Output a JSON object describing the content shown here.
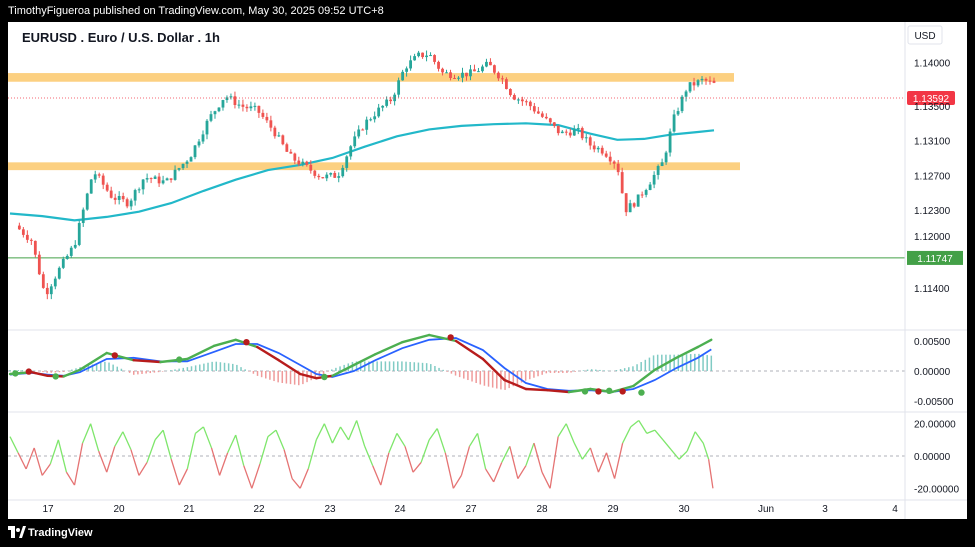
{
  "header": {
    "publisher_line": "TimothyFigueroa published on TradingView.com, May 30, 2025 09:52 UTC+8"
  },
  "chart_title": "EURUSD . Euro / U.S. Dollar . 1h",
  "currency_badge": "USD",
  "footer": {
    "brand": "TradingView",
    "logo_icon": "tradingview-logo-icon"
  },
  "colors": {
    "up": "#26a69a",
    "down": "#ef5350",
    "ma": "#22b8c9",
    "zone": "#fbc86b",
    "macd_fast": "#4caf50",
    "macd_slow": "#2962ff",
    "macd_dot_bull": "#4caf50",
    "macd_dot_bear": "#b71c1c",
    "osc_up": "#7ee66b",
    "osc_down": "#e57373",
    "hline": "#43a047",
    "price_label": "#f23645"
  },
  "chart_data": [
    {
      "type": "candlestick",
      "x_ticks": [
        "17",
        "20",
        "21",
        "22",
        "23",
        "24",
        "27",
        "28",
        "29",
        "30",
        "Jun",
        "3",
        "4"
      ],
      "y_ticks": [
        "1.14000",
        "1.13500",
        "1.13100",
        "1.12700",
        "1.12300",
        "1.12000",
        "1.11400"
      ],
      "ylim": [
        1.1095,
        1.144
      ],
      "current_price": "1.13592",
      "horizontal_line": {
        "label": "1.11747",
        "value": 1.11747
      },
      "zones": [
        {
          "from": 1.1378,
          "to": 1.1388
        },
        {
          "from": 1.1276,
          "to": 1.1285
        }
      ],
      "close_path": [
        [
          16.8,
          1.1212
        ],
        [
          17.1,
          1.1195
        ],
        [
          17.35,
          1.1132
        ],
        [
          17.6,
          1.116
        ],
        [
          17.9,
          1.119
        ],
        [
          18.25,
          1.1275
        ],
        [
          18.6,
          1.1245
        ],
        [
          18.9,
          1.1238
        ],
        [
          19.2,
          1.1268
        ],
        [
          19.6,
          1.1262
        ],
        [
          20.05,
          1.1292
        ],
        [
          20.4,
          1.1335
        ],
        [
          20.7,
          1.1362
        ],
        [
          21.0,
          1.135
        ],
        [
          21.3,
          1.1345
        ],
        [
          21.6,
          1.1322
        ],
        [
          21.9,
          1.1292
        ],
        [
          22.25,
          1.1278
        ],
        [
          22.5,
          1.1268
        ],
        [
          22.8,
          1.127
        ],
        [
          23.05,
          1.1305
        ],
        [
          23.3,
          1.133
        ],
        [
          23.55,
          1.1345
        ],
        [
          23.8,
          1.1358
        ],
        [
          24.05,
          1.1395
        ],
        [
          24.3,
          1.1408
        ],
        [
          24.5,
          1.141
        ],
        [
          24.75,
          1.1388
        ],
        [
          25.0,
          1.1386
        ],
        [
          25.3,
          1.1388
        ],
        [
          25.6,
          1.1398
        ],
        [
          25.85,
          1.1382
        ],
        [
          26.05,
          1.1362
        ],
        [
          26.35,
          1.1352
        ],
        [
          26.65,
          1.1335
        ],
        [
          26.95,
          1.1318
        ],
        [
          27.25,
          1.1322
        ],
        [
          27.5,
          1.1305
        ],
        [
          27.75,
          1.1298
        ],
        [
          28.0,
          1.1282
        ],
        [
          28.15,
          1.123
        ],
        [
          28.35,
          1.124
        ],
        [
          28.6,
          1.1262
        ],
        [
          28.85,
          1.1285
        ],
        [
          29.05,
          1.1335
        ],
        [
          29.3,
          1.1372
        ],
        [
          29.6,
          1.138
        ],
        [
          29.8,
          1.1375
        ]
      ],
      "ma_path": [
        [
          16.7,
          1.1226
        ],
        [
          17.3,
          1.1223
        ],
        [
          17.9,
          1.1218
        ],
        [
          18.5,
          1.1222
        ],
        [
          19.1,
          1.1228
        ],
        [
          19.7,
          1.1238
        ],
        [
          20.3,
          1.1252
        ],
        [
          20.9,
          1.1265
        ],
        [
          21.5,
          1.1276
        ],
        [
          22.1,
          1.1282
        ],
        [
          22.7,
          1.129
        ],
        [
          23.3,
          1.1303
        ],
        [
          23.9,
          1.1315
        ],
        [
          24.5,
          1.1323
        ],
        [
          25.1,
          1.1327
        ],
        [
          25.7,
          1.1329
        ],
        [
          26.3,
          1.133
        ],
        [
          26.9,
          1.1328
        ],
        [
          27.5,
          1.1318
        ],
        [
          28.0,
          1.1311
        ],
        [
          28.5,
          1.1312
        ],
        [
          29.0,
          1.1317
        ],
        [
          29.5,
          1.132
        ],
        [
          29.8,
          1.1322
        ]
      ]
    },
    {
      "type": "macd",
      "y_ticks": [
        "0.00500",
        "0.00000",
        "-0.00500"
      ],
      "ylim": [
        -0.0065,
        0.0065
      ],
      "fast_path": [
        [
          16.7,
          -0.0005
        ],
        [
          17.1,
          -0.0002
        ],
        [
          17.4,
          -0.0008
        ],
        [
          17.7,
          -0.0009
        ],
        [
          18.0,
          0.0002
        ],
        [
          18.5,
          0.003
        ],
        [
          19.0,
          0.0018
        ],
        [
          19.5,
          0.0015
        ],
        [
          20.0,
          0.002
        ],
        [
          20.5,
          0.0042
        ],
        [
          20.9,
          0.0052
        ],
        [
          21.3,
          0.004
        ],
        [
          21.7,
          0.0018
        ],
        [
          22.1,
          -0.0005
        ],
        [
          22.4,
          -0.0012
        ],
        [
          22.7,
          -0.0008
        ],
        [
          23.1,
          0.001
        ],
        [
          23.5,
          0.0028
        ],
        [
          24.0,
          0.0048
        ],
        [
          24.5,
          0.006
        ],
        [
          25.0,
          0.005
        ],
        [
          25.5,
          0.002
        ],
        [
          25.9,
          -0.0015
        ],
        [
          26.3,
          -0.003
        ],
        [
          26.7,
          -0.0032
        ],
        [
          27.1,
          -0.0035
        ],
        [
          27.5,
          -0.003
        ],
        [
          27.9,
          -0.0035
        ],
        [
          28.3,
          -0.0025
        ],
        [
          28.7,
          0.0002
        ],
        [
          29.1,
          0.0022
        ],
        [
          29.5,
          0.004
        ],
        [
          29.75,
          0.0052
        ]
      ],
      "slow_path": [
        [
          16.7,
          -0.0006
        ],
        [
          17.1,
          -0.0003
        ],
        [
          17.4,
          -0.0006
        ],
        [
          17.7,
          -0.0008
        ],
        [
          18.0,
          -0.0002
        ],
        [
          18.5,
          0.002
        ],
        [
          19.0,
          0.0022
        ],
        [
          19.5,
          0.0016
        ],
        [
          20.0,
          0.0016
        ],
        [
          20.5,
          0.0032
        ],
        [
          20.9,
          0.0045
        ],
        [
          21.3,
          0.0045
        ],
        [
          21.7,
          0.003
        ],
        [
          22.1,
          0.001
        ],
        [
          22.4,
          -0.0005
        ],
        [
          22.7,
          -0.001
        ],
        [
          23.1,
          0.0
        ],
        [
          23.5,
          0.0018
        ],
        [
          24.0,
          0.0038
        ],
        [
          24.5,
          0.0052
        ],
        [
          25.0,
          0.0055
        ],
        [
          25.5,
          0.0035
        ],
        [
          25.9,
          0.0005
        ],
        [
          26.3,
          -0.002
        ],
        [
          26.7,
          -0.003
        ],
        [
          27.1,
          -0.0033
        ],
        [
          27.5,
          -0.0032
        ],
        [
          27.9,
          -0.0035
        ],
        [
          28.3,
          -0.003
        ],
        [
          28.7,
          -0.0015
        ],
        [
          29.1,
          0.0005
        ],
        [
          29.5,
          0.0022
        ],
        [
          29.75,
          0.0036
        ]
      ],
      "cross_dots": [
        {
          "x": 16.8,
          "y": -0.0004,
          "dir": "bull"
        },
        {
          "x": 17.05,
          "y": -0.0001,
          "dir": "bear"
        },
        {
          "x": 17.55,
          "y": -0.0009,
          "dir": "bull"
        },
        {
          "x": 18.65,
          "y": 0.0026,
          "dir": "bear"
        },
        {
          "x": 19.85,
          "y": 0.0019,
          "dir": "bull"
        },
        {
          "x": 21.1,
          "y": 0.0048,
          "dir": "bear"
        },
        {
          "x": 22.55,
          "y": -0.001,
          "dir": "bull"
        },
        {
          "x": 24.9,
          "y": 0.0056,
          "dir": "bear"
        },
        {
          "x": 27.4,
          "y": -0.0034,
          "dir": "bull"
        },
        {
          "x": 27.65,
          "y": -0.0034,
          "dir": "bear"
        },
        {
          "x": 27.85,
          "y": -0.0033,
          "dir": "bull"
        },
        {
          "x": 28.1,
          "y": -0.0034,
          "dir": "bear"
        },
        {
          "x": 28.45,
          "y": -0.0036,
          "dir": "bull"
        }
      ]
    },
    {
      "type": "oscillator",
      "y_ticks": [
        "20.00000",
        "0.00000",
        "-20.00000"
      ],
      "ylim": [
        -26,
        26
      ],
      "path": [
        [
          16.7,
          12
        ],
        [
          16.85,
          2
        ],
        [
          17.0,
          -8
        ],
        [
          17.15,
          5
        ],
        [
          17.3,
          -12
        ],
        [
          17.45,
          -5
        ],
        [
          17.6,
          10
        ],
        [
          17.75,
          -10
        ],
        [
          17.9,
          -18
        ],
        [
          18.05,
          8
        ],
        [
          18.2,
          20
        ],
        [
          18.35,
          3
        ],
        [
          18.5,
          -10
        ],
        [
          18.65,
          6
        ],
        [
          18.8,
          15
        ],
        [
          18.95,
          4
        ],
        [
          19.1,
          -12
        ],
        [
          19.25,
          -4
        ],
        [
          19.4,
          10
        ],
        [
          19.55,
          16
        ],
        [
          19.7,
          -2
        ],
        [
          19.85,
          -18
        ],
        [
          20.0,
          -8
        ],
        [
          20.15,
          14
        ],
        [
          20.3,
          18
        ],
        [
          20.45,
          5
        ],
        [
          20.6,
          -12
        ],
        [
          20.75,
          2
        ],
        [
          20.9,
          13
        ],
        [
          21.05,
          -6
        ],
        [
          21.2,
          -20
        ],
        [
          21.35,
          -5
        ],
        [
          21.5,
          12
        ],
        [
          21.65,
          16
        ],
        [
          21.8,
          4
        ],
        [
          21.95,
          -14
        ],
        [
          22.1,
          -20
        ],
        [
          22.25,
          -8
        ],
        [
          22.4,
          10
        ],
        [
          22.55,
          20
        ],
        [
          22.7,
          8
        ],
        [
          22.85,
          18
        ],
        [
          23.0,
          10
        ],
        [
          23.15,
          22
        ],
        [
          23.3,
          6
        ],
        [
          23.45,
          -6
        ],
        [
          23.6,
          -18
        ],
        [
          23.75,
          2
        ],
        [
          23.9,
          14
        ],
        [
          24.05,
          6
        ],
        [
          24.2,
          -10
        ],
        [
          24.35,
          -4
        ],
        [
          24.5,
          10
        ],
        [
          24.65,
          17
        ],
        [
          24.8,
          2
        ],
        [
          24.95,
          -20
        ],
        [
          25.1,
          -12
        ],
        [
          25.25,
          6
        ],
        [
          25.4,
          14
        ],
        [
          25.55,
          -8
        ],
        [
          25.7,
          -16
        ],
        [
          25.85,
          -4
        ],
        [
          26.0,
          6
        ],
        [
          26.15,
          -14
        ],
        [
          26.3,
          -6
        ],
        [
          26.45,
          8
        ],
        [
          26.6,
          -10
        ],
        [
          26.75,
          -20
        ],
        [
          26.9,
          12
        ],
        [
          27.05,
          20
        ],
        [
          27.2,
          8
        ],
        [
          27.35,
          -2
        ],
        [
          27.5,
          5
        ],
        [
          27.65,
          -10
        ],
        [
          27.8,
          2
        ],
        [
          27.95,
          -14
        ],
        [
          28.1,
          8
        ],
        [
          28.25,
          18
        ],
        [
          28.4,
          22
        ],
        [
          28.55,
          14
        ],
        [
          28.7,
          16
        ],
        [
          28.85,
          10
        ],
        [
          29.0,
          4
        ],
        [
          29.15,
          -2
        ],
        [
          29.3,
          3
        ],
        [
          29.45,
          15
        ],
        [
          29.6,
          8
        ],
        [
          29.7,
          -2
        ],
        [
          29.78,
          -20
        ]
      ]
    }
  ]
}
